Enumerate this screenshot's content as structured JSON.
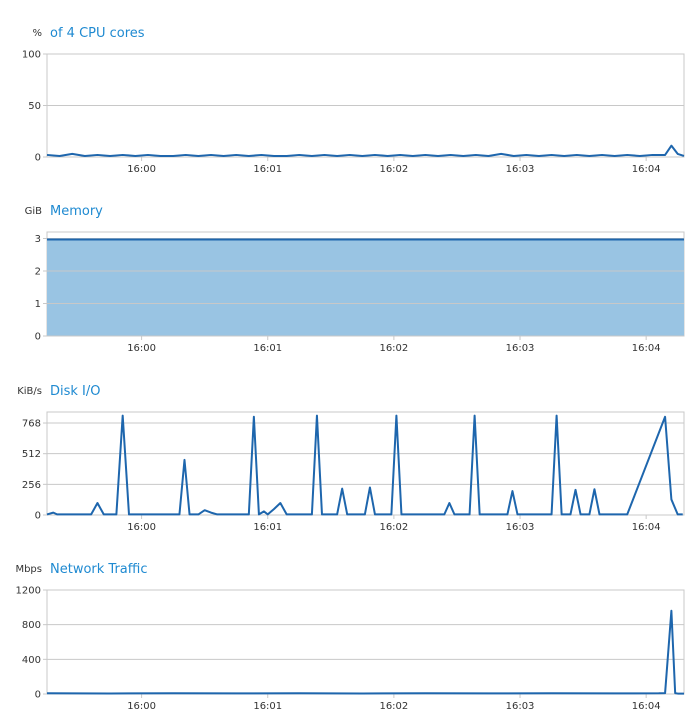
{
  "chart_data": [
    {
      "id": "cpu",
      "type": "line",
      "unit_label": "%",
      "title": "of 4 CPU cores",
      "ylim": [
        0,
        100
      ],
      "yticks": [
        0,
        50,
        100
      ],
      "ytick_labels": [
        "0",
        "50",
        "100"
      ],
      "xticks": [
        "16:00",
        "16:01",
        "16:02",
        "16:03",
        "16:04"
      ],
      "grid": true,
      "series": [
        {
          "color": "#1e66ad",
          "x": [
            0,
            0.1,
            0.2,
            0.3,
            0.4,
            0.5,
            0.6,
            0.7,
            0.8,
            0.9,
            1.0,
            1.1,
            1.2,
            1.3,
            1.4,
            1.5,
            1.6,
            1.7,
            1.8,
            1.9,
            2.0,
            2.1,
            2.2,
            2.3,
            2.4,
            2.5,
            2.6,
            2.7,
            2.8,
            2.9,
            3.0,
            3.1,
            3.2,
            3.3,
            3.4,
            3.5,
            3.6,
            3.7,
            3.8,
            3.9,
            4.0,
            4.1,
            4.2,
            4.3,
            4.4,
            4.5,
            4.6,
            4.7,
            4.8,
            4.9,
            4.95,
            5.0,
            5.05
          ],
          "values": [
            2,
            1,
            3,
            1,
            2,
            1,
            2,
            1,
            2,
            1,
            1,
            2,
            1,
            2,
            1,
            2,
            1,
            2,
            1,
            1,
            2,
            1,
            2,
            1,
            2,
            1,
            2,
            1,
            2,
            1,
            2,
            1,
            2,
            1,
            2,
            1,
            3,
            1,
            2,
            1,
            2,
            1,
            2,
            1,
            2,
            1,
            2,
            1,
            2,
            2,
            11,
            3,
            1
          ]
        }
      ]
    },
    {
      "id": "memory",
      "type": "area",
      "unit_label": "GiB",
      "title": "Memory",
      "ylim": [
        0,
        3.2
      ],
      "yticks": [
        0,
        1,
        2,
        3
      ],
      "ytick_labels": [
        "0",
        "1",
        "2",
        "3"
      ],
      "xticks": [
        "16:00",
        "16:01",
        "16:02",
        "16:03",
        "16:04"
      ],
      "grid": true,
      "series": [
        {
          "color": "#1e66ad",
          "fill": "#99c4e3",
          "x": [
            0,
            5.05
          ],
          "values": [
            2.97,
            2.97
          ]
        }
      ]
    },
    {
      "id": "disk",
      "type": "line",
      "unit_label": "KiB/s",
      "title": "Disk I/O",
      "ylim": [
        0,
        860
      ],
      "yticks": [
        0,
        256,
        512,
        768
      ],
      "ytick_labels": [
        "0",
        "256",
        "512",
        "768"
      ],
      "xticks": [
        "16:00",
        "16:01",
        "16:02",
        "16:03",
        "16:04"
      ],
      "grid": true,
      "series": [
        {
          "color": "#1e66ad",
          "x": [
            0,
            0.05,
            0.08,
            0.1,
            0.12,
            0.35,
            0.4,
            0.45,
            0.55,
            0.6,
            0.65,
            0.7,
            0.75,
            1.05,
            1.09,
            1.13,
            1.2,
            1.25,
            1.3,
            1.35,
            1.4,
            1.45,
            1.5,
            1.6,
            1.64,
            1.68,
            1.72,
            1.75,
            1.8,
            1.85,
            1.9,
            2.1,
            2.14,
            2.18,
            2.3,
            2.34,
            2.38,
            2.52,
            2.56,
            2.6,
            2.73,
            2.77,
            2.81,
            3.15,
            3.19,
            3.23,
            3.35,
            3.39,
            3.43,
            3.65,
            3.69,
            3.73,
            4.0,
            4.04,
            4.08,
            4.15,
            4.19,
            4.23,
            4.3,
            4.34,
            4.38,
            4.5,
            4.55,
            4.6,
            4.9,
            4.95,
            5.0,
            5.04
          ],
          "values": [
            5,
            20,
            5,
            5,
            5,
            5,
            100,
            5,
            5,
            830,
            5,
            5,
            5,
            5,
            460,
            5,
            5,
            40,
            20,
            5,
            5,
            5,
            5,
            5,
            820,
            5,
            30,
            5,
            50,
            100,
            5,
            5,
            830,
            5,
            5,
            220,
            5,
            5,
            230,
            5,
            5,
            830,
            5,
            5,
            100,
            5,
            5,
            830,
            5,
            5,
            200,
            5,
            5,
            830,
            5,
            5,
            210,
            5,
            5,
            215,
            5,
            5,
            5,
            5,
            820,
            130,
            5,
            5
          ]
        }
      ]
    },
    {
      "id": "network",
      "type": "line",
      "unit_label": "Mbps",
      "title": "Network Traffic",
      "ylim": [
        0,
        1200
      ],
      "yticks": [
        0,
        400,
        800,
        1200
      ],
      "ytick_labels": [
        "0",
        "400",
        "800",
        "1200"
      ],
      "xticks": [
        "16:00",
        "16:01",
        "16:02",
        "16:03",
        "16:04"
      ],
      "grid": true,
      "series": [
        {
          "color": "#1e66ad",
          "x": [
            0,
            0.5,
            1.0,
            1.5,
            2.0,
            2.5,
            3.0,
            3.5,
            4.0,
            4.5,
            4.85,
            4.9,
            4.95,
            4.98,
            5.0,
            5.05
          ],
          "values": [
            8,
            6,
            9,
            7,
            8,
            6,
            9,
            7,
            8,
            7,
            8,
            10,
            960,
            10,
            5,
            5
          ]
        }
      ]
    }
  ]
}
